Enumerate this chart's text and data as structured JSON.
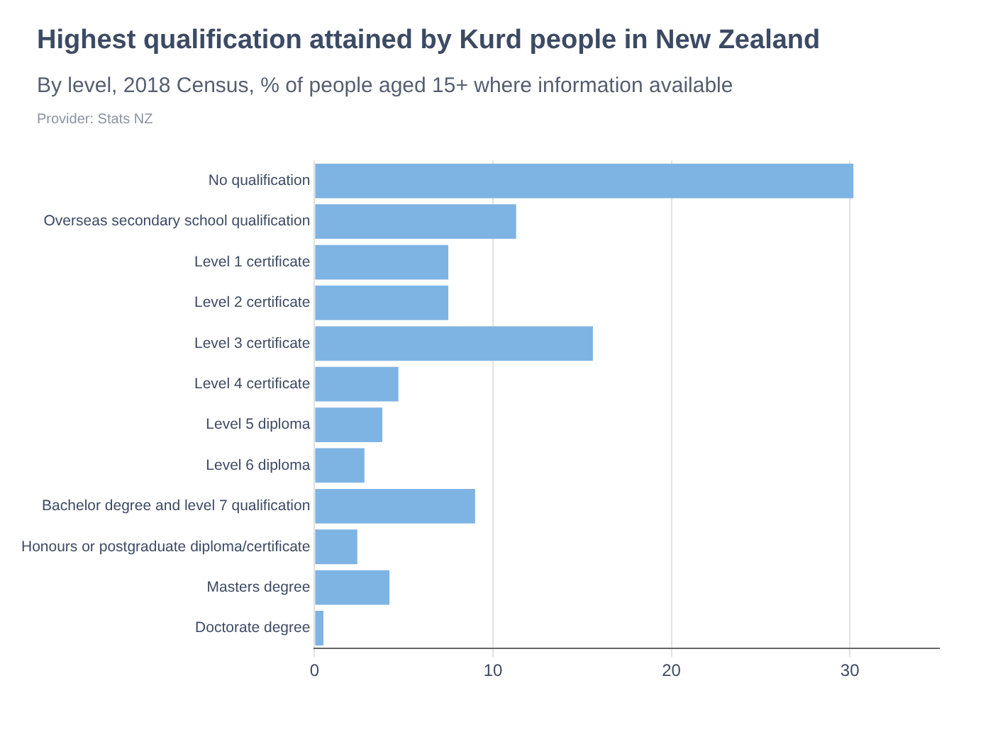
{
  "chart_data": {
    "type": "bar",
    "orientation": "horizontal",
    "title": "Highest qualification attained by Kurd people in New Zealand",
    "subtitle": "By level, 2018 Census, % of people aged 15+ where information available",
    "annotations": [
      "Provider: Stats NZ"
    ],
    "categories": [
      "No qualification",
      "Overseas secondary school qualification",
      "Level 1 certificate",
      "Level 2 certificate",
      "Level 3 certificate",
      "Level 4 certificate",
      "Level 5 diploma",
      "Level 6 diploma",
      "Bachelor degree and level 7 qualification",
      "Honours or postgraduate diploma/certificate",
      "Masters degree",
      "Doctorate degree"
    ],
    "values": [
      30.2,
      11.3,
      7.5,
      7.5,
      15.6,
      4.7,
      3.8,
      2.8,
      9.0,
      2.4,
      4.2,
      0.5
    ],
    "color": "#7eb4e3",
    "xlim": [
      0,
      35
    ],
    "xticks": [
      0,
      10,
      20,
      30
    ],
    "grid": "x",
    "legend": false
  }
}
